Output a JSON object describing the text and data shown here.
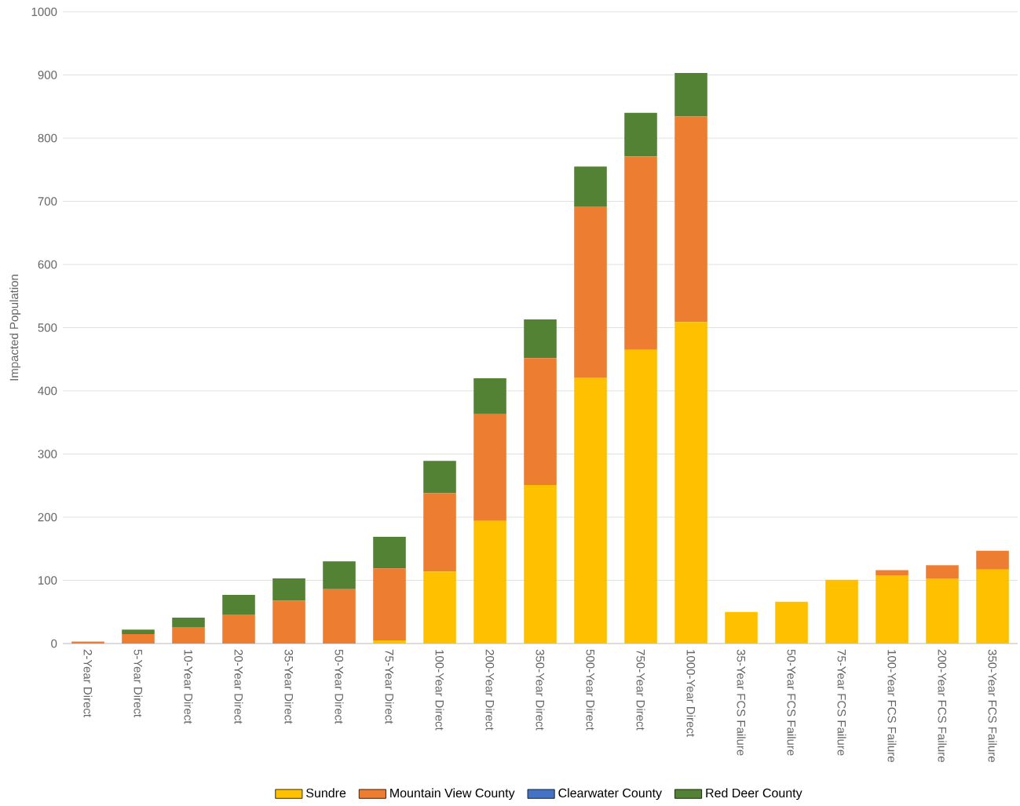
{
  "chart_data": {
    "type": "bar",
    "stacked": true,
    "ylabel": "Impacted Population",
    "categories": [
      "2-Year Direct",
      "5-Year Direct",
      "10-Year Direct",
      "20-Year Direct",
      "35-Year Direct",
      "50-Year Direct",
      "75-Year Direct",
      "100-Year Direct",
      "200-Year Direct",
      "350-Year Direct",
      "500-Year Direct",
      "750-Year Direct",
      "1000-Year Direct",
      "35-Year FCS Failure",
      "50-Year FCS Failure",
      "75-Year FCS Failure",
      "100-Year FCS Failure",
      "200-Year FCS Failure",
      "350-Year FCS Failure"
    ],
    "series": [
      {
        "name": "Sundre",
        "color": "#ffc000",
        "values": [
          0,
          0,
          0,
          0,
          0,
          0,
          5,
          114,
          194,
          251,
          421,
          465,
          509,
          50,
          66,
          101,
          108,
          103,
          117
        ]
      },
      {
        "name": "Mountain View County",
        "color": "#ed7d31",
        "values": [
          3,
          15,
          26,
          46,
          68,
          86,
          114,
          124,
          169,
          201,
          271,
          306,
          325,
          0,
          0,
          0,
          8,
          21,
          30
        ]
      },
      {
        "name": "Clearwater County",
        "color": "#4472c4",
        "values": [
          0,
          0,
          0,
          0,
          0,
          0,
          0,
          0,
          0,
          0,
          0,
          0,
          0,
          0,
          0,
          0,
          0,
          0,
          0
        ]
      },
      {
        "name": "Red Deer County",
        "color": "#548235",
        "values": [
          0,
          7,
          15,
          31,
          35,
          44,
          50,
          51,
          57,
          61,
          63,
          69,
          69,
          0,
          0,
          0,
          0,
          0,
          0
        ]
      }
    ],
    "ylim": [
      0,
      1000
    ],
    "yticks": [
      0,
      100,
      200,
      300,
      400,
      500,
      600,
      700,
      800,
      900,
      1000
    ],
    "grid": "y",
    "legend": "bottom"
  }
}
